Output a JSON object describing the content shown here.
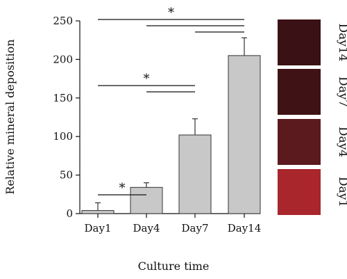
{
  "chart_data": {
    "type": "bar",
    "title": "",
    "xlabel": "Culture time",
    "ylabel": "Relative mineral deposition",
    "categories": [
      "Day1",
      "Day4",
      "Day7",
      "Day14"
    ],
    "values": [
      4,
      34,
      102,
      205
    ],
    "error": [
      10,
      6,
      21,
      23
    ],
    "ylim": [
      0,
      250
    ],
    "yticks": [
      0,
      50,
      100,
      150,
      200,
      250
    ],
    "bar_color": "#c8c8c8",
    "grid": false,
    "significance": [
      {
        "from": 0,
        "to": 1,
        "label": "*"
      },
      {
        "from": 0,
        "to": 2,
        "label": "*"
      },
      {
        "from": 1,
        "to": 2,
        "label": ""
      },
      {
        "from": 0,
        "to": 3,
        "label": "*"
      },
      {
        "from": 1,
        "to": 3,
        "label": ""
      },
      {
        "from": 2,
        "to": 3,
        "label": ""
      }
    ]
  },
  "stain_panels": [
    {
      "label": "Day14",
      "color": "#3a1114"
    },
    {
      "label": "Day7",
      "color": "#3f1315"
    },
    {
      "label": "Day4",
      "color": "#5a1a1e"
    },
    {
      "label": "Day1",
      "color": "#a8262c"
    }
  ]
}
